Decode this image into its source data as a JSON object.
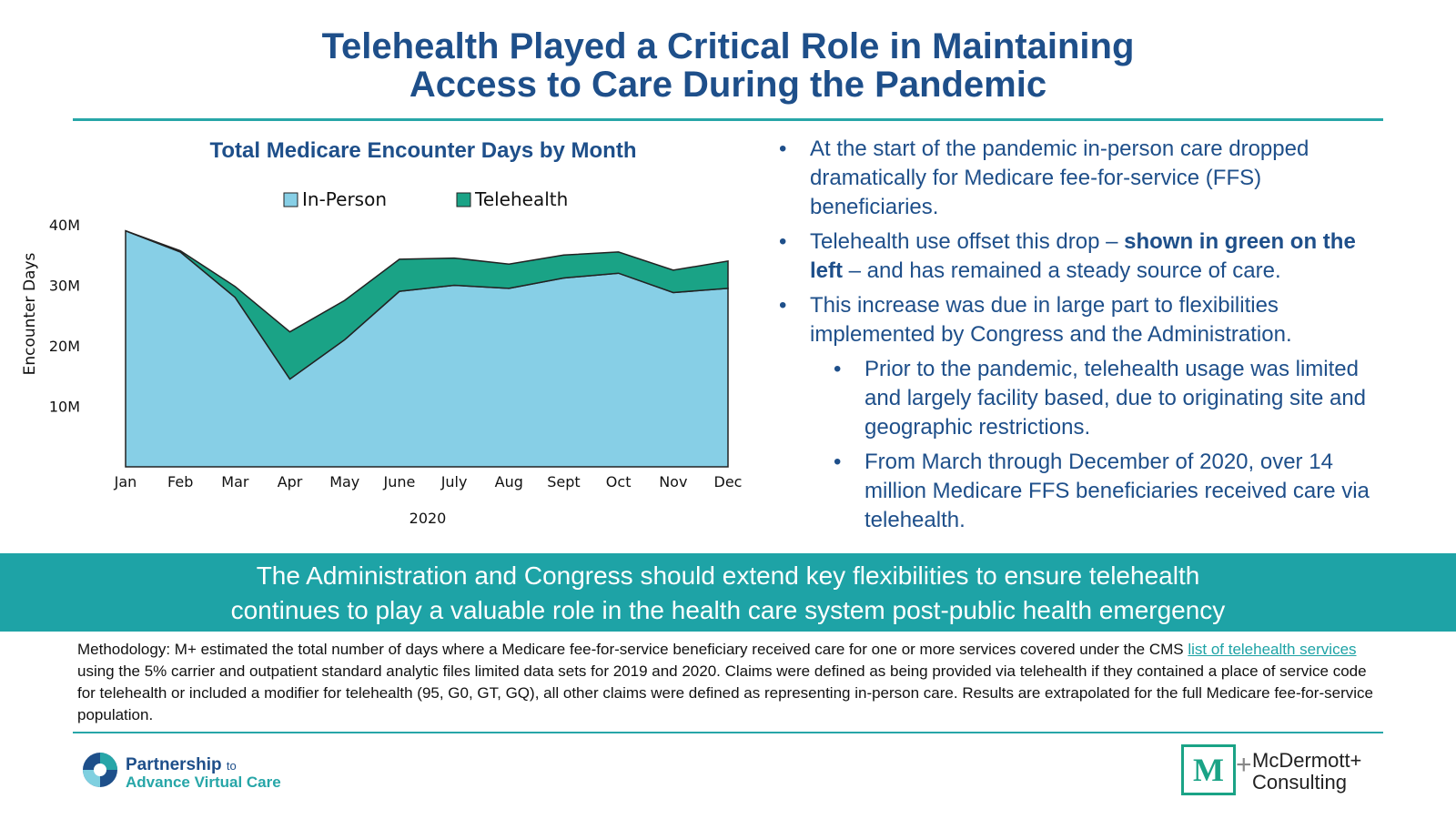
{
  "slide": {
    "title_line1": "Telehealth Played a Critical Role in Maintaining",
    "title_line2": "Access to Care During the Pandemic"
  },
  "bullets": {
    "b1": "At the start of the pandemic in-person care dropped dramatically for Medicare fee-for-service (FFS) beneficiaries.",
    "b2_pre": "Telehealth use offset this drop – ",
    "b2_bold": "shown in green on the left",
    "b2_post": " – and has remained a steady source of care.",
    "b3": "This increase was due in large part to flexibilities implemented by Congress and the Administration.",
    "b3a": "Prior to the pandemic, telehealth usage was limited and largely facility based, due to originating site and geographic restrictions.",
    "b3b": "From March through December of 2020, over 14 million Medicare FFS beneficiaries received care via telehealth."
  },
  "callout": {
    "line1": "The Administration and Congress should extend key flexibilities to ensure telehealth",
    "line2": "continues to play a valuable role in the health care system post-public health emergency"
  },
  "methodology": {
    "pre": "Methodology: M+ estimated the total number of days where a Medicare fee-for-service beneficiary received care for one or more services covered under the CMS ",
    "link": "list of telehealth services",
    "post": " using the 5% carrier and outpatient standard analytic files limited data sets for 2019 and 2020. Claims were defined as being provided via telehealth if they contained a place of service code for telehealth or included a modifier for telehealth (95, G0, GT, GQ), all other claims were defined as representing in-person care. Results are extrapolated for the full Medicare fee-for-service population."
  },
  "logos": {
    "left_line1": "Partnership",
    "left_line1_small": "to",
    "left_line2": "Advance Virtual Care",
    "right_mark": "M",
    "right_plus": "+",
    "right_line1": "McDermott+",
    "right_line2": "Consulting"
  },
  "colors": {
    "in_person": "#87cfe6",
    "telehealth": "#1aa386",
    "title_blue": "#1e4f8a",
    "teal": "#1ea3a6"
  },
  "chart_data": {
    "type": "area",
    "stacked": true,
    "title": "Total Medicare Encounter Days by Month",
    "xlabel": "2020",
    "ylabel": "Encounter Days",
    "categories": [
      "Jan",
      "Feb",
      "Mar",
      "Apr",
      "May",
      "June",
      "July",
      "Aug",
      "Sept",
      "Oct",
      "Nov",
      "Dec"
    ],
    "series": [
      {
        "name": "In-Person",
        "values": [
          39.0,
          35.5,
          28.0,
          14.5,
          21.0,
          29.0,
          30.0,
          29.5,
          31.2,
          32.0,
          28.8,
          29.5
        ]
      },
      {
        "name": "Telehealth",
        "values": [
          0.0,
          0.2,
          1.8,
          7.8,
          6.5,
          5.3,
          4.5,
          4.0,
          3.8,
          3.5,
          3.7,
          4.5
        ]
      }
    ],
    "ylim": [
      0,
      40
    ],
    "yticks": [
      10,
      20,
      30,
      40
    ],
    "ytick_labels": [
      "10M",
      "20M",
      "30M",
      "40M"
    ],
    "legend": "top-center"
  }
}
